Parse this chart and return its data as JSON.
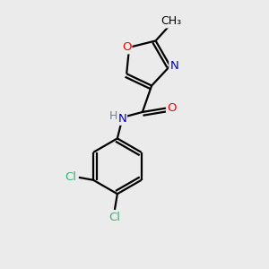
{
  "background_color": "#ebebeb",
  "bond_color": "#000000",
  "atom_colors": {
    "O": "#ff0000",
    "N": "#0000cd",
    "Cl": "#3cb371",
    "H": "#708090"
  },
  "lw": 1.6,
  "fontsize": 9.5
}
